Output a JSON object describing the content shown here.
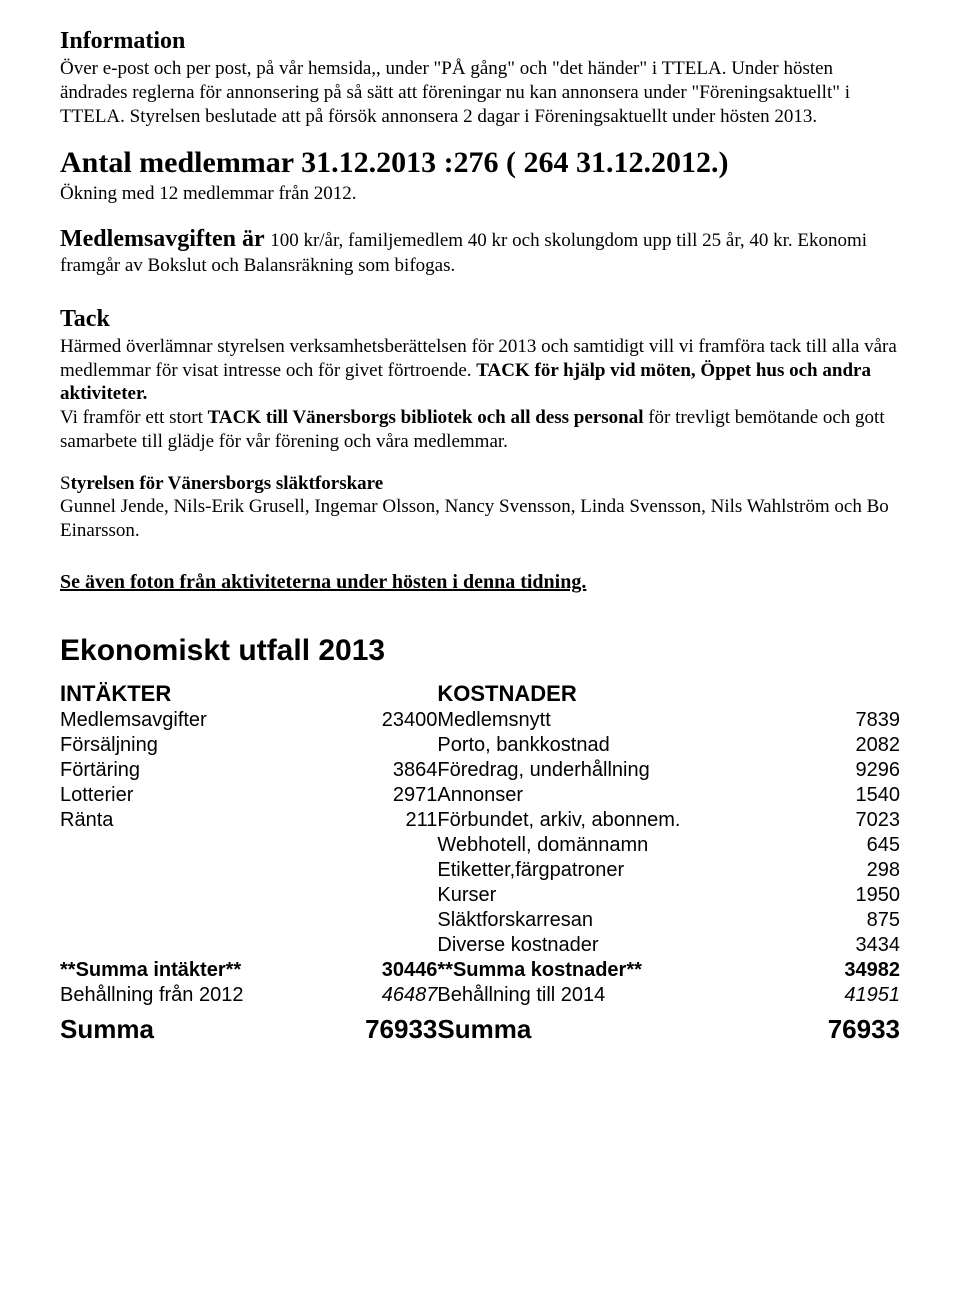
{
  "information": {
    "heading": "Information",
    "body": "Över e-post och per post, på vår hemsida,, under \"PÅ gång\" och \"det händer\" i TTELA. Under hösten ändrades reglerna för annonsering på så sätt att föreningar nu kan annonsera under \"Föreningsaktuellt\" i TTELA. Styrelsen beslutade att på försök annonsera 2 dagar i Föreningsaktuellt under hösten 2013."
  },
  "antal": {
    "line": "Antal medlemmar 31.12.2013 :276  ( 264  31.12.2012.)",
    "sub": "Ökning med 12 medlemmar från 2012."
  },
  "medlemsavgift": {
    "bold": "Medlemsavgiften är ",
    "rest": "100 kr/år, familjemedlem 40 kr och skolungdom upp till 25 år, 40 kr. Ekonomi framgår av Bokslut och Balansräkning som bifogas."
  },
  "tack": {
    "heading": "Tack",
    "p1a": "Härmed överlämnar styrelsen verksamhetsberättelsen för 2013 och samtidigt vill vi framföra tack till alla våra medlemmar för visat intresse och för givet förtroende. ",
    "p1b": "TACK för hjälp vid möten, Öppet hus och andra aktiviteter.",
    "p2a": "Vi framför ett stort ",
    "p2b": "TACK till Vänersborgs bibliotek och all dess personal ",
    "p2c": "för trevligt bemötande och gott samarbete till glädje för vår förening och våra medlemmar."
  },
  "styrelsen": {
    "s1": "S",
    "heading": "tyrelsen för Vänersborgs släktforskare",
    "body": "Gunnel Jende, Nils-Erik Grusell, Ingemar Olsson, Nancy Svensson, Linda Svensson, Nils Wahlström och Bo Einarsson."
  },
  "note": "Se även foton från aktiviteterna under hösten i denna tidning.",
  "ekonomi": {
    "heading": "Ekonomiskt utfall 2013",
    "left_header": "INTÄKTER",
    "right_header": "KOSTNADER",
    "rows": [
      {
        "ll": "Medlemsavgifter",
        "lv": "23400",
        "rl": "Medlemsnytt",
        "rv": "7839"
      },
      {
        "ll": "Försäljning",
        "lv": "",
        "rl": "Porto, bankkostnad",
        "rv": "2082"
      },
      {
        "ll": "Förtäring",
        "lv": "3864",
        "rl": "Föredrag, underhållning",
        "rv": "9296"
      },
      {
        "ll": "Lotterier",
        "lv": "2971",
        "rl": "Annonser",
        "rv": "1540"
      },
      {
        "ll": "Ränta",
        "lv": "211",
        "rl": "Förbundet, arkiv, abonnem.",
        "rv": "7023"
      },
      {
        "ll": "",
        "lv": "",
        "rl": "Webhotell, domännamn",
        "rv": "645"
      },
      {
        "ll": "",
        "lv": "",
        "rl": "Etiketter,färgpatroner",
        "rv": "298"
      },
      {
        "ll": "",
        "lv": "",
        "rl": "Kurser",
        "rv": "1950"
      },
      {
        "ll": "",
        "lv": "",
        "rl": "Släktforskarresan",
        "rv": "875"
      },
      {
        "ll": "",
        "lv": "",
        "rl": "Diverse kostnader",
        "rv": "3434"
      }
    ],
    "summa_int_label": "**Summa intäkter**",
    "summa_int_val": "30446",
    "summa_kost_label": "**Summa kostnader**",
    "summa_kost_val": "34982",
    "behall_from_label": "Behållning från 2012",
    "behall_from_val": "46487",
    "behall_to_label": "Behållning till 2014",
    "behall_to_val": "41951",
    "summa_label": "Summa",
    "summa_left": "76933",
    "summa_right": "76933"
  }
}
